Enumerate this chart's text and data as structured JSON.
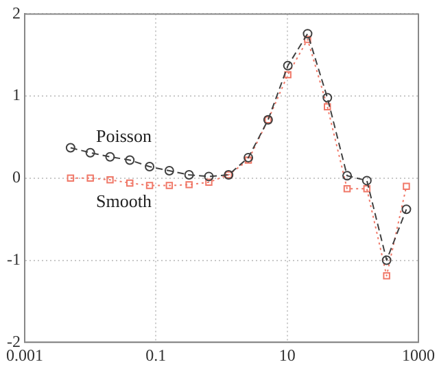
{
  "chart_data": {
    "type": "line",
    "log": "x",
    "x": [
      0.005,
      0.01,
      0.02,
      0.04,
      0.08,
      0.16,
      0.32,
      0.64,
      1.28,
      2.56,
      5.12,
      10.24,
      20.48,
      40.96,
      81.92,
      163.84,
      327.68,
      655.36
    ],
    "series": [
      {
        "name": "Poisson",
        "color": "#404040",
        "marker": "circle",
        "line_style": "dashed",
        "values": [
          0.37,
          0.31,
          0.26,
          0.22,
          0.14,
          0.09,
          0.04,
          0.02,
          0.04,
          0.25,
          0.71,
          1.37,
          1.76,
          0.98,
          0.03,
          -0.03,
          -1.0,
          -0.38
        ]
      },
      {
        "name": "Smooth",
        "color": "#f07868",
        "marker": "square",
        "line_style": "dotted",
        "values": [
          0,
          0,
          -0.02,
          -0.06,
          -0.09,
          -0.09,
          -0.08,
          -0.05,
          0.04,
          0.22,
          0.71,
          1.26,
          1.69,
          0.87,
          -0.13,
          -0.13,
          -1.19,
          -0.1
        ]
      }
    ],
    "xlim": [
      0.001,
      1000
    ],
    "xticks": [
      0.001,
      0.1,
      10,
      1000
    ],
    "ylim": [
      -2,
      2
    ],
    "yticks": [
      -2,
      -1,
      0,
      1,
      2
    ],
    "grid": true,
    "legend": false
  }
}
